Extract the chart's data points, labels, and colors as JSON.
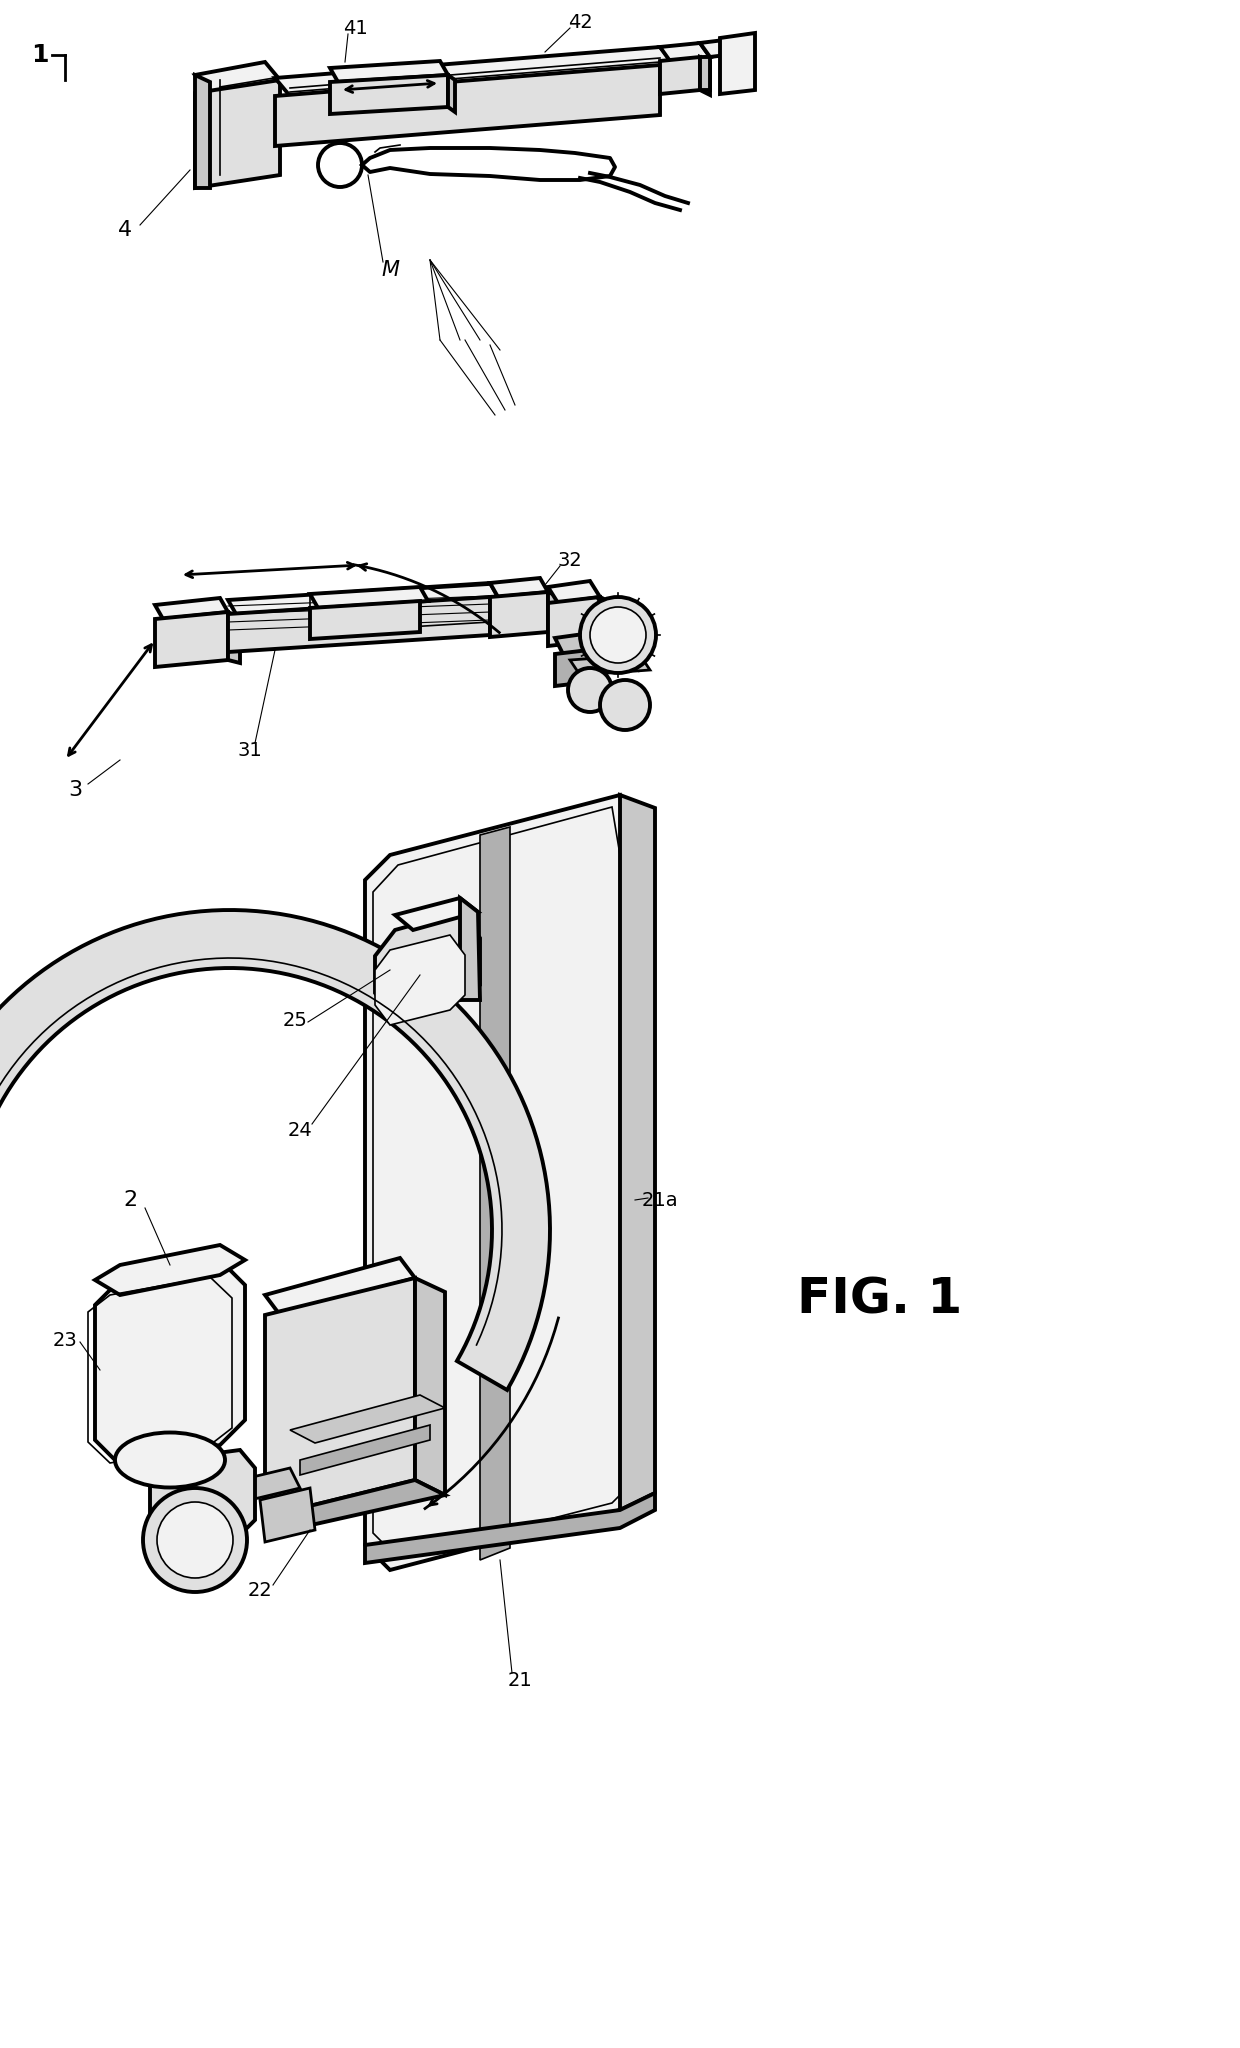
{
  "bg_color": "#ffffff",
  "fig_label": "FIG. 1",
  "labels": {
    "sys_num": "1",
    "comp2": "2",
    "comp3": "3",
    "comp4": "4",
    "n21": "21",
    "n21a": "21a",
    "n22": "22",
    "n23": "23",
    "n24": "24",
    "n25": "25",
    "n31": "31",
    "n32": "32",
    "n41": "41",
    "n42": "42",
    "M": "M"
  },
  "lw_thick": 2.8,
  "lw_medium": 2.0,
  "lw_thin": 1.2,
  "lw_hair": 0.8,
  "gray_light": "#f2f2f2",
  "gray_mid": "#e0e0e0",
  "gray_dark": "#c8c8c8",
  "gray_darker": "#b0b0b0"
}
